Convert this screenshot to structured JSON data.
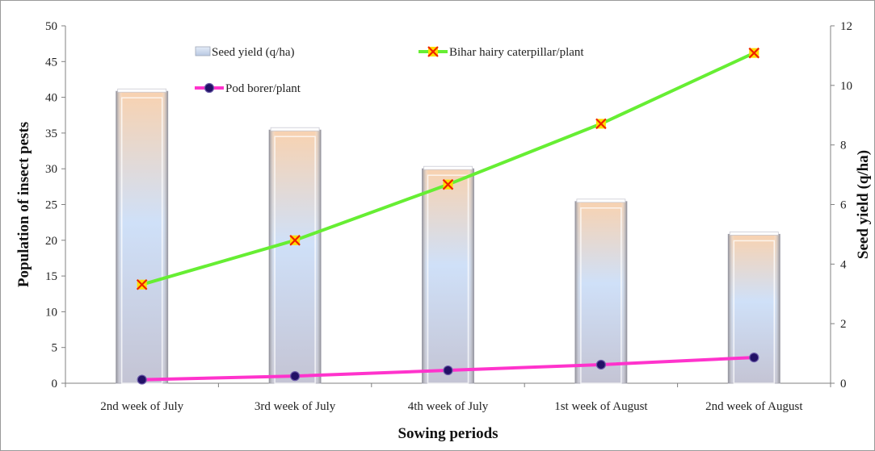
{
  "chart_data": {
    "type": "bar",
    "categories": [
      "2nd week of July",
      "3rd week of July",
      "4th week of July",
      "1st week of August",
      "2nd week of August"
    ],
    "series": [
      {
        "name": "Seed yield (q/ha)",
        "type": "bar",
        "axis": "right",
        "values": [
          9.8,
          8.5,
          7.2,
          6.1,
          5.0
        ]
      },
      {
        "name": "Bihar hairy caterpillar/plant",
        "type": "line",
        "axis": "left",
        "values": [
          13.8,
          20.0,
          27.8,
          36.3,
          46.2
        ]
      },
      {
        "name": "Pod borer/plant",
        "type": "line",
        "axis": "left",
        "values": [
          0.5,
          1.0,
          1.8,
          2.6,
          3.6
        ]
      }
    ],
    "xlabel": "Sowing periods",
    "ylabel": "Population of insect pests",
    "y2label": "Seed yield (q/ha)",
    "ylim": [
      0,
      50
    ],
    "y2lim": [
      0,
      12
    ],
    "yticks": [
      "0",
      "5",
      "10",
      "15",
      "20",
      "25",
      "30",
      "35",
      "40",
      "45",
      "50"
    ],
    "y2ticks": [
      "0",
      "2",
      "4",
      "6",
      "8",
      "10",
      "12"
    ],
    "legend": [
      {
        "label": "Seed yield (q/ha)"
      },
      {
        "label": "Bihar hairy caterpillar/plant"
      },
      {
        "label": "Pod borer/plant"
      }
    ],
    "legend_position": "top",
    "grid": false,
    "colors": {
      "caterpillar_line": "#66ee33",
      "caterpillar_marker": "#ee2200",
      "caterpillar_marker_fill": "#ffdd00",
      "borer_line": "#ff33cc",
      "borer_marker": "#221166",
      "bar_top": "#f8d2b0",
      "bar_mid": "#cfe0f8",
      "bar_bottom": "#c4c4d4"
    }
  }
}
